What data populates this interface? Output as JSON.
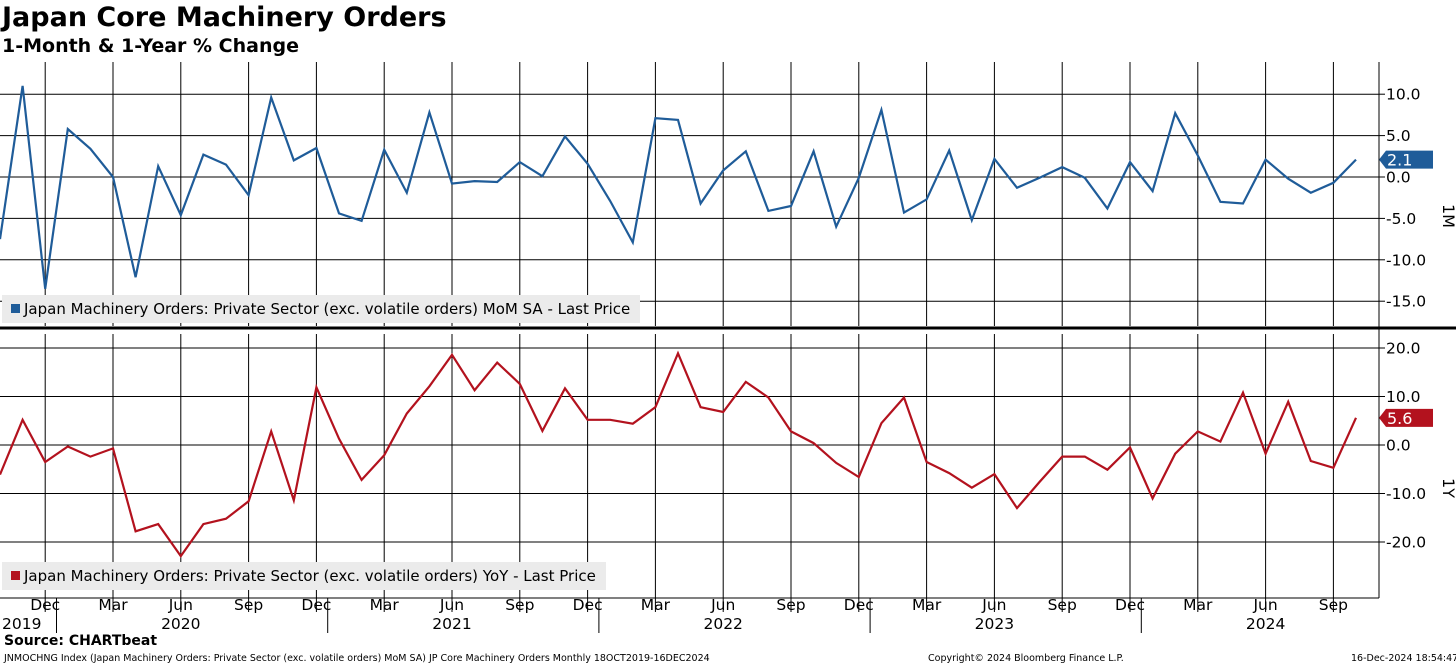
{
  "title": "Japan Core Machinery Orders",
  "subtitle": "1-Month & 1-Year % Change",
  "source": "Source: CHARTbeat",
  "footer": {
    "left": "JNMOCHNG Index (Japan Machinery Orders: Private Sector (exc. volatile orders) MoM SA) JP Core Machinery Orders  Monthly 18OCT2019-16DEC2024",
    "center": "Copyright© 2024 Bloomberg Finance L.P.",
    "right": "16-Dec-2024 18:54:47"
  },
  "colors": {
    "mom": "#1f5c99",
    "yoy": "#b3121e",
    "grid": "#000000",
    "legend_bg": "#ebebeb"
  },
  "chart_data": [
    {
      "type": "line",
      "panel": "top",
      "axis_label": "1M",
      "legend": "Japan Machinery Orders: Private Sector (exc. volatile orders) MoM SA - Last Price",
      "last_value_label": "2.1",
      "ylim": [
        -18.5,
        13.5
      ],
      "yticks": [
        10.0,
        5.0,
        0.0,
        -5.0,
        -10.0,
        -15.0
      ],
      "ytick_labels": [
        "10.0",
        "5.0",
        "0.0",
        "-5.0",
        "-10.0",
        "-15.0"
      ],
      "series": [
        {
          "name": "MoM",
          "start": "2019-10",
          "values": [
            -7.5,
            11.0,
            -13.5,
            5.8,
            3.4,
            0.0,
            -12.1,
            1.3,
            -4.6,
            2.7,
            1.5,
            -2.2,
            9.6,
            2.0,
            3.5,
            -4.4,
            -5.3,
            3.3,
            -1.9,
            7.8,
            -0.8,
            -0.5,
            -0.6,
            1.8,
            0.1,
            4.9,
            1.6,
            -2.9,
            -7.9,
            7.1,
            6.9,
            -3.2,
            0.8,
            3.1,
            -4.1,
            -3.5,
            3.1,
            -6.0,
            -0.1,
            8.1,
            -4.3,
            -2.7,
            3.2,
            -5.2,
            2.2,
            -1.3,
            -0.1,
            1.2,
            -0.1,
            -3.8,
            1.8,
            -1.7,
            7.7,
            2.6,
            -3.0,
            -3.2,
            2.1,
            -0.2,
            -1.9,
            -0.7,
            2.1
          ]
        }
      ]
    },
    {
      "type": "line",
      "panel": "bottom",
      "axis_label": "1Y",
      "legend": "Japan Machinery Orders: Private Sector (exc. volatile orders) YoY - Last Price",
      "last_value_label": "5.6",
      "ylim": [
        -31.5,
        21.5
      ],
      "yticks": [
        20.0,
        10.0,
        0.0,
        -10.0,
        -20.0
      ],
      "ytick_labels": [
        "20.0",
        "10.0",
        "0.0",
        "-10.0",
        "-20.0"
      ],
      "series": [
        {
          "name": "YoY",
          "start": "2019-10",
          "values": [
            -6.1,
            5.2,
            -3.5,
            -0.3,
            -2.4,
            -0.7,
            -17.8,
            -16.3,
            -22.9,
            -16.3,
            -15.2,
            -11.6,
            2.8,
            -11.4,
            11.9,
            1.3,
            -7.2,
            -2.1,
            6.5,
            12.1,
            18.6,
            11.3,
            17.0,
            12.6,
            2.9,
            11.7,
            5.2,
            5.2,
            4.4,
            7.8,
            18.9,
            7.8,
            6.8,
            13.0,
            9.8,
            2.8,
            0.4,
            -3.7,
            -6.6,
            4.5,
            9.8,
            -3.5,
            -5.8,
            -8.8,
            -6.0,
            -13.0,
            -7.6,
            -2.4,
            -2.4,
            -5.1,
            -0.5,
            -11.0,
            -1.8,
            2.8,
            0.7,
            10.8,
            -1.8,
            8.9,
            -3.3,
            -4.7,
            5.6
          ]
        }
      ]
    }
  ],
  "x_axis": {
    "month_labels": [
      {
        "label": "Dec",
        "month": "2019-12"
      },
      {
        "label": "Mar",
        "month": "2020-03"
      },
      {
        "label": "Jun",
        "month": "2020-06"
      },
      {
        "label": "Sep",
        "month": "2020-09"
      },
      {
        "label": "Dec",
        "month": "2020-12"
      },
      {
        "label": "Mar",
        "month": "2021-03"
      },
      {
        "label": "Jun",
        "month": "2021-06"
      },
      {
        "label": "Sep",
        "month": "2021-09"
      },
      {
        "label": "Dec",
        "month": "2021-12"
      },
      {
        "label": "Mar",
        "month": "2022-03"
      },
      {
        "label": "Jun",
        "month": "2022-06"
      },
      {
        "label": "Sep",
        "month": "2022-09"
      },
      {
        "label": "Dec",
        "month": "2022-12"
      },
      {
        "label": "Mar",
        "month": "2023-03"
      },
      {
        "label": "Jun",
        "month": "2023-06"
      },
      {
        "label": "Sep",
        "month": "2023-09"
      },
      {
        "label": "Dec",
        "month": "2023-12"
      },
      {
        "label": "Mar",
        "month": "2024-03"
      },
      {
        "label": "Jun",
        "month": "2024-06"
      },
      {
        "label": "Sep",
        "month": "2024-09"
      }
    ],
    "year_labels": [
      {
        "label": "2019",
        "month": "2019-10"
      },
      {
        "label": "2020",
        "month": "2020-06"
      },
      {
        "label": "2021",
        "month": "2021-06"
      },
      {
        "label": "2022",
        "month": "2022-06"
      },
      {
        "label": "2023",
        "month": "2023-06"
      },
      {
        "label": "2024",
        "month": "2024-06"
      }
    ],
    "year_boundaries": [
      "2020-01",
      "2021-01",
      "2022-01",
      "2023-01",
      "2024-01"
    ]
  }
}
